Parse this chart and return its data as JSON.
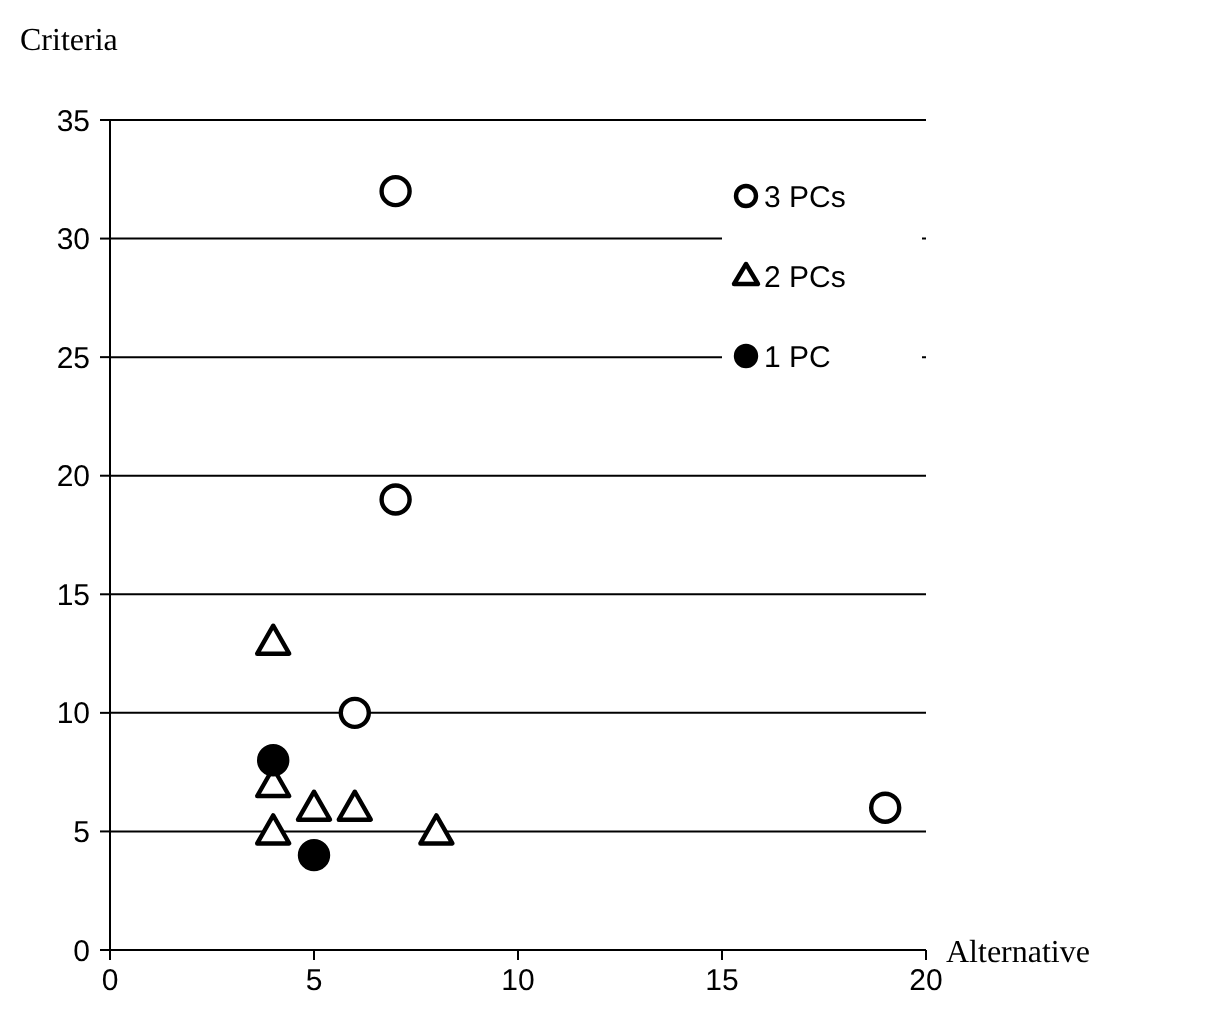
{
  "chart_data": {
    "type": "scatter",
    "xlabel": "Alternative",
    "ylabel": "Criteria",
    "xlim": [
      0,
      20
    ],
    "xticks": [
      0,
      5,
      10,
      15,
      20
    ],
    "ylim": [
      0,
      35
    ],
    "yticks": [
      0,
      5,
      10,
      15,
      20,
      25,
      30,
      35
    ],
    "grid": "y",
    "legend": "top right",
    "series": [
      {
        "name": "3 PCs",
        "color": "#ffffff",
        "marker": "circle",
        "x": [
          7,
          7,
          6,
          19
        ],
        "values": [
          32,
          19,
          10,
          6
        ]
      },
      {
        "name": "2 PCs",
        "color": "#ffffff",
        "marker": "triangle",
        "x": [
          4,
          4,
          4,
          5,
          6,
          8
        ],
        "values": [
          13,
          7,
          5,
          6,
          6,
          5
        ]
      },
      {
        "name": "1 PC",
        "color": "#000000",
        "marker": "circle",
        "x": [
          4,
          5
        ],
        "values": [
          8,
          4
        ]
      }
    ]
  }
}
